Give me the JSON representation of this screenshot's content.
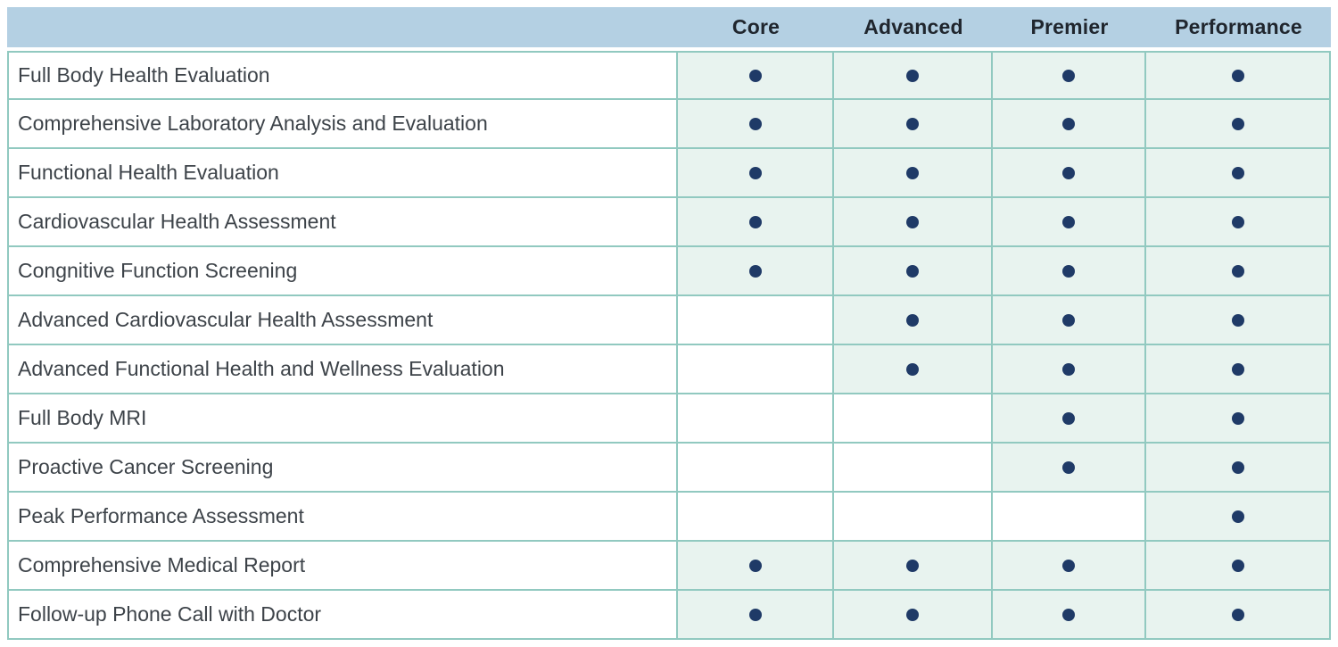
{
  "table": {
    "feature_column_header": "",
    "plans": [
      "Core",
      "Advanced",
      "Premier",
      "Performance"
    ],
    "rows": [
      {
        "name": "Full Body Health Evaluation",
        "included": [
          true,
          true,
          true,
          true
        ]
      },
      {
        "name": "Comprehensive Laboratory Analysis and Evaluation",
        "included": [
          true,
          true,
          true,
          true
        ]
      },
      {
        "name": "Functional Health Evaluation",
        "included": [
          true,
          true,
          true,
          true
        ]
      },
      {
        "name": "Cardiovascular Health Assessment",
        "included": [
          true,
          true,
          true,
          true
        ]
      },
      {
        "name": "Congnitive Function Screening",
        "included": [
          true,
          true,
          true,
          true
        ]
      },
      {
        "name": "Advanced Cardiovascular Health Assessment",
        "included": [
          false,
          true,
          true,
          true
        ]
      },
      {
        "name": "Advanced Functional Health and Wellness Evaluation",
        "included": [
          false,
          true,
          true,
          true
        ]
      },
      {
        "name": "Full Body MRI",
        "included": [
          false,
          false,
          true,
          true
        ]
      },
      {
        "name": "Proactive Cancer Screening",
        "included": [
          false,
          false,
          true,
          true
        ]
      },
      {
        "name": "Peak Performance Assessment",
        "included": [
          false,
          false,
          false,
          true
        ]
      },
      {
        "name": "Comprehensive Medical Report",
        "included": [
          true,
          true,
          true,
          true
        ]
      },
      {
        "name": "Follow-up Phone Call with Doctor",
        "included": [
          true,
          true,
          true,
          true
        ]
      }
    ],
    "dot_symbol": "●",
    "colors": {
      "header_bg": "#b4d0e3",
      "header_text": "#20262e",
      "included_cell_bg": "#e8f3ef",
      "border": "#91c9c0",
      "dot": "#1f3a67",
      "feature_text": "#3d4349",
      "page_bg": "#ffffff"
    }
  },
  "chart_data": {
    "type": "table",
    "title": "",
    "columns": [
      "",
      "Core",
      "Advanced",
      "Premier",
      "Performance"
    ],
    "row_labels": [
      "Full Body Health Evaluation",
      "Comprehensive Laboratory Analysis and Evaluation",
      "Functional Health Evaluation",
      "Cardiovascular Health Assessment",
      "Congnitive Function Screening",
      "Advanced Cardiovascular Health Assessment",
      "Advanced Functional Health and Wellness Evaluation",
      "Full Body MRI",
      "Proactive Cancer Screening",
      "Peak Performance Assessment",
      "Comprehensive Medical Report",
      "Follow-up Phone Call with Doctor"
    ],
    "matrix": [
      [
        1,
        1,
        1,
        1
      ],
      [
        1,
        1,
        1,
        1
      ],
      [
        1,
        1,
        1,
        1
      ],
      [
        1,
        1,
        1,
        1
      ],
      [
        1,
        1,
        1,
        1
      ],
      [
        0,
        1,
        1,
        1
      ],
      [
        0,
        1,
        1,
        1
      ],
      [
        0,
        0,
        1,
        1
      ],
      [
        0,
        0,
        1,
        1
      ],
      [
        0,
        0,
        0,
        1
      ],
      [
        1,
        1,
        1,
        1
      ],
      [
        1,
        1,
        1,
        1
      ]
    ],
    "legend": "1 = included (navy dot on mint cell), 0 = not included (white cell)"
  }
}
